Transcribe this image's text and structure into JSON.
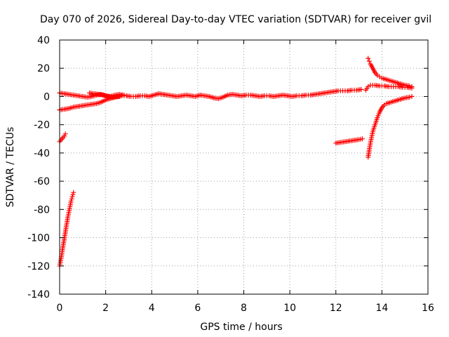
{
  "chart_data": {
    "type": "scatter",
    "title": "Day 070 of 2026, Sidereal Day-to-day VTEC variation (SDTVAR) for receiver gvil",
    "xlabel": "GPS time / hours",
    "ylabel": "SDTVAR / TECUs",
    "xlim": [
      0,
      16
    ],
    "ylim": [
      -140,
      40
    ],
    "xticks": [
      0,
      2,
      4,
      6,
      8,
      10,
      12,
      14,
      16
    ],
    "yticks": [
      40,
      20,
      0,
      -20,
      -40,
      -60,
      -80,
      -100,
      -120,
      -140
    ],
    "grid": true,
    "marker": "+",
    "color": "#ff0000",
    "series": [
      {
        "name": "main-upper-arc",
        "points": [
          [
            0.0,
            2.5
          ],
          [
            0.2,
            2
          ],
          [
            0.4,
            1.5
          ],
          [
            0.6,
            1
          ],
          [
            0.8,
            0.5
          ],
          [
            1.0,
            0
          ],
          [
            1.2,
            -0.5
          ],
          [
            1.4,
            0
          ],
          [
            1.6,
            1
          ],
          [
            1.8,
            1.5
          ],
          [
            2.0,
            0.5
          ],
          [
            2.2,
            0
          ],
          [
            2.4,
            1
          ],
          [
            2.6,
            1.5
          ],
          [
            2.8,
            1
          ]
        ]
      },
      {
        "name": "main-lower-arc",
        "points": [
          [
            0.0,
            -9.5
          ],
          [
            0.2,
            -9
          ],
          [
            0.4,
            -8.5
          ],
          [
            0.6,
            -7.5
          ],
          [
            0.8,
            -7
          ],
          [
            1.0,
            -6.5
          ],
          [
            1.2,
            -6
          ],
          [
            1.4,
            -5.5
          ],
          [
            1.6,
            -5
          ],
          [
            1.8,
            -4
          ],
          [
            2.0,
            -2.5
          ],
          [
            2.2,
            -1.5
          ],
          [
            2.4,
            -0.5
          ],
          [
            2.6,
            0
          ]
        ]
      },
      {
        "name": "main-mid-arc",
        "points": [
          [
            1.3,
            2.5
          ],
          [
            1.5,
            2
          ],
          [
            1.7,
            1.5
          ],
          [
            1.9,
            1
          ],
          [
            2.1,
            0
          ],
          [
            2.3,
            -0.5
          ],
          [
            2.5,
            0
          ],
          [
            2.7,
            0.5
          ],
          [
            2.9,
            0.5
          ],
          [
            3.1,
            0
          ],
          [
            3.3,
            0
          ],
          [
            3.5,
            0.5
          ],
          [
            3.7,
            0.5
          ],
          [
            3.9,
            0
          ],
          [
            4.1,
            1
          ],
          [
            4.3,
            2
          ],
          [
            4.5,
            1.5
          ],
          [
            4.7,
            1
          ],
          [
            4.9,
            0.5
          ],
          [
            5.1,
            0
          ],
          [
            5.3,
            0.5
          ],
          [
            5.5,
            1
          ],
          [
            5.7,
            0.5
          ],
          [
            5.9,
            0
          ],
          [
            6.1,
            1
          ],
          [
            6.3,
            0.5
          ],
          [
            6.5,
            0
          ],
          [
            6.7,
            -1
          ],
          [
            6.9,
            -1.5
          ],
          [
            7.1,
            -0.5
          ],
          [
            7.3,
            1
          ],
          [
            7.5,
            1.5
          ],
          [
            7.7,
            1
          ],
          [
            7.9,
            0.5
          ],
          [
            8.1,
            1
          ],
          [
            8.3,
            1
          ],
          [
            8.5,
            0.5
          ],
          [
            8.7,
            0
          ],
          [
            8.9,
            0.5
          ],
          [
            9.1,
            0.5
          ],
          [
            9.3,
            0
          ],
          [
            9.5,
            0.5
          ],
          [
            9.7,
            1
          ],
          [
            9.9,
            0.5
          ],
          [
            10.1,
            0
          ],
          [
            10.3,
            0.5
          ],
          [
            10.5,
            0.5
          ],
          [
            10.7,
            1
          ],
          [
            10.9,
            1
          ],
          [
            11.1,
            1.5
          ],
          [
            11.3,
            2
          ],
          [
            11.5,
            2.5
          ],
          [
            11.7,
            3
          ],
          [
            11.9,
            3.5
          ],
          [
            12.1,
            4
          ],
          [
            12.3,
            4
          ],
          [
            12.5,
            4
          ],
          [
            12.7,
            4.5
          ],
          [
            12.9,
            4.5
          ],
          [
            13.1,
            5
          ]
        ]
      },
      {
        "name": "left-segment-short",
        "points": [
          [
            0.0,
            -32
          ],
          [
            0.05,
            -31
          ],
          [
            0.1,
            -30
          ],
          [
            0.15,
            -29
          ],
          [
            0.2,
            -28
          ],
          [
            0.25,
            -26.5
          ]
        ]
      },
      {
        "name": "left-segment-steep",
        "points": [
          [
            0.0,
            -120
          ],
          [
            0.05,
            -116
          ],
          [
            0.1,
            -111
          ],
          [
            0.15,
            -106
          ],
          [
            0.2,
            -101
          ],
          [
            0.25,
            -96
          ],
          [
            0.3,
            -91
          ],
          [
            0.35,
            -86
          ],
          [
            0.4,
            -82
          ],
          [
            0.45,
            -78
          ],
          [
            0.5,
            -74
          ],
          [
            0.55,
            -71
          ],
          [
            0.6,
            -68
          ]
        ]
      },
      {
        "name": "right-lower-segment",
        "points": [
          [
            12.0,
            -33
          ],
          [
            12.2,
            -32.5
          ],
          [
            12.4,
            -32
          ],
          [
            12.6,
            -31.5
          ],
          [
            12.8,
            -31
          ],
          [
            13.0,
            -30.5
          ],
          [
            13.15,
            -30
          ]
        ]
      },
      {
        "name": "right-rising-arc",
        "points": [
          [
            13.4,
            -43
          ],
          [
            13.45,
            -38
          ],
          [
            13.5,
            -33
          ],
          [
            13.55,
            -29
          ],
          [
            13.6,
            -25
          ],
          [
            13.7,
            -20
          ],
          [
            13.8,
            -15
          ],
          [
            13.9,
            -11
          ],
          [
            14.0,
            -8
          ],
          [
            14.1,
            -6
          ],
          [
            14.2,
            -5
          ],
          [
            14.4,
            -4
          ],
          [
            14.6,
            -3
          ],
          [
            14.8,
            -2
          ],
          [
            15.0,
            -1
          ],
          [
            15.2,
            -0.5
          ],
          [
            15.3,
            0
          ]
        ]
      },
      {
        "name": "right-falling-arc",
        "points": [
          [
            13.4,
            27
          ],
          [
            13.45,
            25
          ],
          [
            13.5,
            23
          ],
          [
            13.6,
            20
          ],
          [
            13.7,
            17
          ],
          [
            13.8,
            15
          ],
          [
            13.9,
            14
          ],
          [
            14.0,
            13
          ],
          [
            14.2,
            12
          ],
          [
            14.4,
            11
          ],
          [
            14.6,
            10
          ],
          [
            14.8,
            9
          ],
          [
            15.0,
            8
          ],
          [
            15.2,
            7.5
          ],
          [
            15.3,
            7
          ]
        ]
      },
      {
        "name": "right-flat-arc",
        "points": [
          [
            13.3,
            4.5
          ],
          [
            13.4,
            7
          ],
          [
            13.5,
            8
          ],
          [
            13.7,
            8
          ],
          [
            13.9,
            7.5
          ],
          [
            14.1,
            7.5
          ],
          [
            14.3,
            7
          ],
          [
            14.5,
            7
          ],
          [
            14.7,
            7
          ],
          [
            14.9,
            6.5
          ],
          [
            15.1,
            6.5
          ],
          [
            15.3,
            6
          ]
        ]
      }
    ]
  }
}
